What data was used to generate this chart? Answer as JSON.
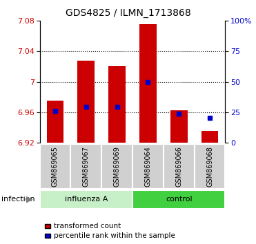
{
  "title": "GDS4825 / ILMN_1713868",
  "samples": [
    "GSM869065",
    "GSM869067",
    "GSM869069",
    "GSM869064",
    "GSM869066",
    "GSM869068"
  ],
  "groups": [
    "influenza A",
    "influenza A",
    "influenza A",
    "control",
    "control",
    "control"
  ],
  "bar_bottom": 6.92,
  "bar_tops": [
    6.975,
    7.028,
    7.02,
    7.076,
    6.963,
    6.935
  ],
  "blue_values": [
    6.962,
    6.967,
    6.967,
    7.0,
    6.958,
    6.953
  ],
  "ylim": [
    6.92,
    7.08
  ],
  "yticks_left": [
    6.92,
    6.96,
    7.0,
    7.04,
    7.08
  ],
  "ytick_labels_left": [
    "6.92",
    "6.96",
    "7",
    "7.04",
    "7.08"
  ],
  "yticks_right_pct": [
    0,
    25,
    50,
    75,
    100
  ],
  "ytick_labels_right": [
    "0",
    "25",
    "50",
    "75",
    "100%"
  ],
  "bar_color": "#cc0000",
  "blue_color": "#0000cc",
  "bar_width": 0.55,
  "grid_color": "black",
  "grid_yticks": [
    6.96,
    7.0,
    7.04
  ],
  "influenza_color": "#c8f0c8",
  "control_color": "#40d040",
  "gray_color": "#d0d0d0",
  "title_fontsize": 10,
  "tick_fontsize": 8,
  "sample_fontsize": 7,
  "group_fontsize": 8,
  "legend_fontsize": 7.5,
  "infection_fontsize": 8
}
